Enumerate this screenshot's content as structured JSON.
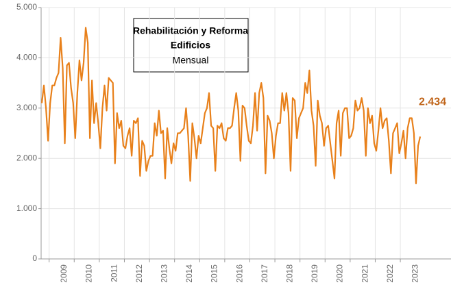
{
  "chart_data": {
    "type": "line",
    "title": [
      "Rehabilitación y Reforma",
      "Edificios"
    ],
    "subtitle": "Mensual",
    "categories": [
      null,
      null,
      null,
      null,
      "2009",
      null,
      null,
      null,
      null,
      null,
      null,
      null,
      null,
      null,
      null,
      null,
      "2010",
      null,
      null,
      null,
      null,
      null,
      null,
      null,
      null,
      null,
      null,
      null,
      "2011",
      null,
      null,
      null,
      null,
      null,
      null,
      null,
      null,
      null,
      null,
      null,
      "2012",
      null,
      null,
      null,
      null,
      null,
      null,
      null,
      null,
      null,
      null,
      null,
      "2013",
      null,
      null,
      null,
      null,
      null,
      null,
      null,
      null,
      null,
      null,
      null,
      "2014",
      null,
      null,
      null,
      null,
      null,
      null,
      null,
      null,
      null,
      null,
      null,
      "2015",
      null,
      null,
      null,
      null,
      null,
      null,
      null,
      null,
      null,
      null,
      null,
      "2016",
      null,
      null,
      null,
      null,
      null,
      null,
      null,
      null,
      null,
      null,
      null,
      "2017",
      null,
      null,
      null,
      null,
      null,
      null,
      null,
      null,
      null,
      null,
      null,
      "2018",
      null,
      null,
      null,
      null,
      null,
      null,
      null,
      null,
      null,
      null,
      null,
      "2019",
      null,
      null,
      null,
      null,
      null,
      null,
      null,
      null,
      null,
      null,
      null,
      "2020",
      null,
      null,
      null,
      null,
      null,
      null,
      null,
      null,
      null,
      null,
      null,
      "2021",
      null,
      null,
      null,
      null,
      null,
      null,
      null,
      null,
      null,
      null,
      null,
      "2022",
      null,
      null,
      null,
      null,
      null,
      null,
      null,
      null,
      null,
      null,
      null,
      "2023",
      null,
      null,
      null,
      null,
      null,
      null,
      null,
      null,
      null
    ],
    "series": [
      {
        "color": "#e8801a",
        "values": [
          3100,
          3450,
          3000,
          2350,
          3100,
          3450,
          3450,
          3600,
          3700,
          4400,
          3800,
          2300,
          3850,
          3900,
          3400,
          3100,
          2400,
          3300,
          3950,
          3550,
          3900,
          4600,
          4300,
          2400,
          3550,
          2700,
          3100,
          2700,
          2200,
          3000,
          3450,
          2950,
          3600,
          3550,
          3500,
          1900,
          2900,
          2600,
          2750,
          2250,
          2200,
          2450,
          2600,
          2050,
          2750,
          2700,
          2800,
          1650,
          2350,
          2250,
          1750,
          1950,
          2050,
          2050,
          2700,
          2450,
          2950,
          2500,
          2550,
          1600,
          2600,
          2200,
          1900,
          2300,
          2150,
          2500,
          2500,
          2550,
          2600,
          3000,
          2450,
          1550,
          2700,
          2400,
          2000,
          2450,
          2300,
          2600,
          2900,
          3000,
          3300,
          2650,
          2600,
          1750,
          2650,
          2600,
          2700,
          2400,
          2350,
          2600,
          2600,
          2650,
          3000,
          3300,
          2950,
          1950,
          3050,
          3000,
          2650,
          2350,
          2300,
          2650,
          3300,
          2550,
          3300,
          3500,
          3200,
          1700,
          2850,
          2750,
          2500,
          2000,
          2450,
          2700,
          2700,
          3300,
          2950,
          3300,
          2900,
          1750,
          3200,
          3150,
          2400,
          2800,
          2900,
          3000,
          3500,
          3300,
          3750,
          2950,
          2650,
          1850,
          3150,
          2850,
          2700,
          2250,
          2600,
          2650,
          2300,
          1950,
          1600,
          2700,
          2950,
          2050,
          2900,
          3000,
          3000,
          2400,
          2450,
          2600,
          3150,
          2950,
          3000,
          3200,
          2950,
          2050,
          3000,
          2700,
          2850,
          2300,
          2150,
          2550,
          3000,
          2600,
          2750,
          2800,
          2350,
          1700,
          2500,
          2600,
          2700,
          2100,
          2300,
          2550,
          2000,
          2600,
          2800,
          2800,
          2500,
          1500,
          2250,
          2434
        ]
      }
    ],
    "last_value_label": "2.434",
    "ylim": [
      0,
      5000
    ],
    "yticks": [
      {
        "value": 0,
        "label": "0"
      },
      {
        "value": 1000,
        "label": "1.000"
      },
      {
        "value": 2000,
        "label": "2.000"
      },
      {
        "value": 3000,
        "label": "3.000"
      },
      {
        "value": 4000,
        "label": "4.000"
      },
      {
        "value": 5000,
        "label": "5.000"
      }
    ],
    "grid": true
  }
}
